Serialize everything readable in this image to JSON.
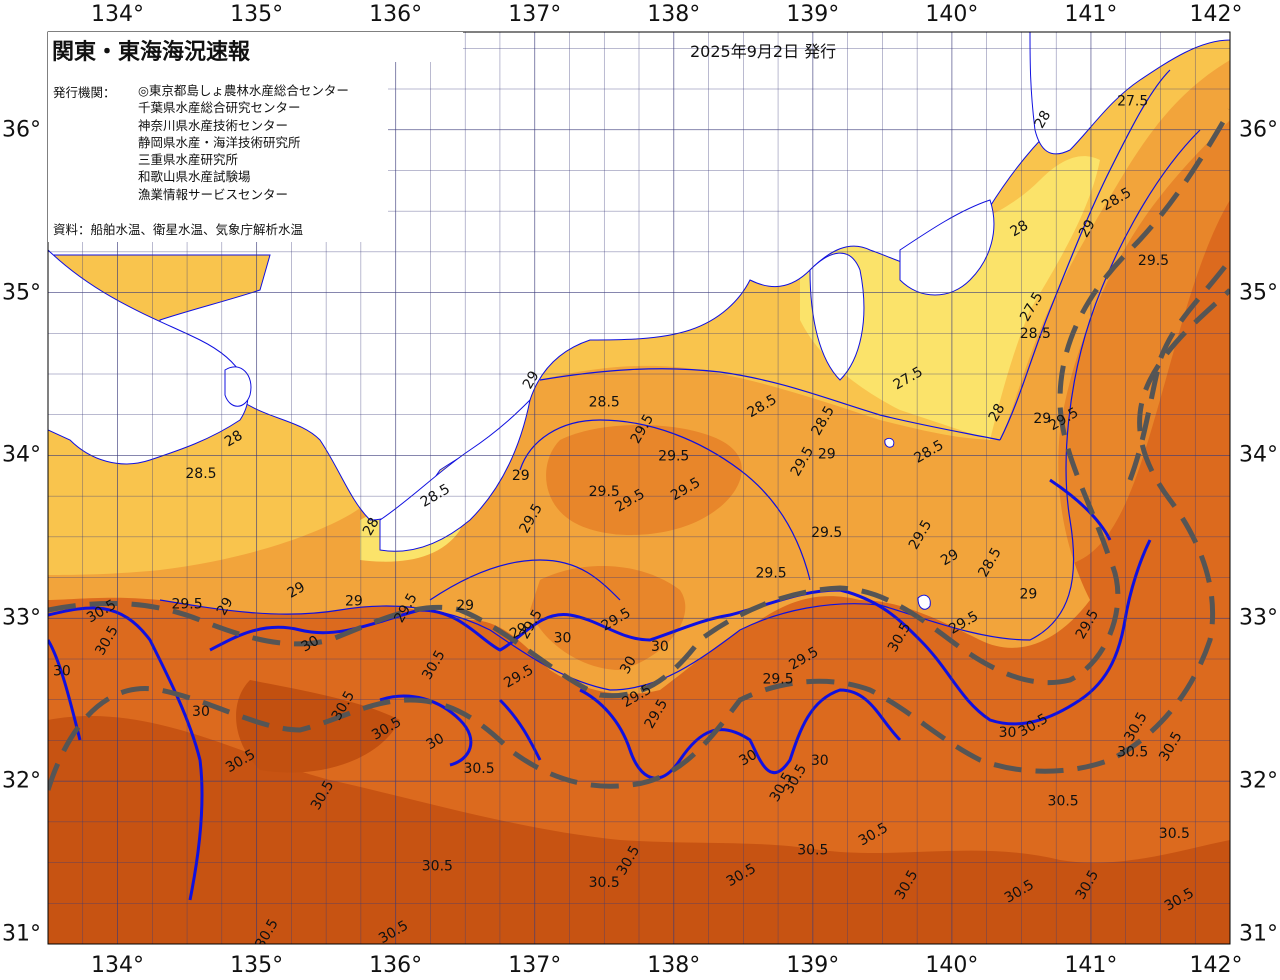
{
  "map": {
    "title": "関東・東海海況速報",
    "issue_date": "2025年9月2日 発行",
    "agencies_label": "発行機関：",
    "agencies": [
      "◎東京都島しょ農林水産総合センター",
      "千葉県水産総合研究センター",
      "神奈川県水産技術センター",
      "静岡県水産・海洋技術研究所",
      "三重県水産研究所",
      "和歌山県水産試験場",
      "漁業情報サービスセンター"
    ],
    "source": "資料：船舶水温、衛星水温、気象庁解析水温",
    "longitude_ticks": [
      "134°",
      "135°",
      "136°",
      "137°",
      "138°",
      "139°",
      "140°",
      "141°",
      "142°"
    ],
    "latitude_ticks": [
      "36°",
      "35°",
      "34°",
      "33°",
      "32°",
      "31°"
    ],
    "longitude_range": [
      133.5,
      142
    ],
    "latitude_range": [
      31,
      36.6
    ],
    "isotherm_labels": [
      {
        "text": "28",
        "lon": 140.68,
        "lat": 36.05
      },
      {
        "text": "27.5",
        "lon": 141.3,
        "lat": 36.15
      },
      {
        "text": "28.5",
        "lon": 141.2,
        "lat": 35.55
      },
      {
        "text": "29",
        "lon": 141.0,
        "lat": 35.38
      },
      {
        "text": "29.5",
        "lon": 141.45,
        "lat": 35.17
      },
      {
        "text": "28",
        "lon": 140.5,
        "lat": 35.37
      },
      {
        "text": "27.5",
        "lon": 140.6,
        "lat": 34.9
      },
      {
        "text": "28.5",
        "lon": 140.6,
        "lat": 34.72
      },
      {
        "text": "27.5",
        "lon": 139.7,
        "lat": 34.45
      },
      {
        "text": "28",
        "lon": 140.35,
        "lat": 34.25
      },
      {
        "text": "29",
        "lon": 140.65,
        "lat": 34.2
      },
      {
        "text": "29.5",
        "lon": 140.82,
        "lat": 34.2
      },
      {
        "text": "28.5",
        "lon": 139.1,
        "lat": 34.2
      },
      {
        "text": "29",
        "lon": 139.1,
        "lat": 33.98
      },
      {
        "text": "28.5",
        "lon": 139.85,
        "lat": 34.0
      },
      {
        "text": "29",
        "lon": 137.0,
        "lat": 34.45
      },
      {
        "text": "28.5",
        "lon": 137.5,
        "lat": 34.3
      },
      {
        "text": "28.5",
        "lon": 138.65,
        "lat": 34.28
      },
      {
        "text": "29.5",
        "lon": 137.8,
        "lat": 34.15
      },
      {
        "text": "29.5",
        "lon": 138.0,
        "lat": 33.97
      },
      {
        "text": "29.5",
        "lon": 138.1,
        "lat": 33.77
      },
      {
        "text": "29.5",
        "lon": 138.95,
        "lat": 33.95
      },
      {
        "text": "29.5",
        "lon": 137.5,
        "lat": 33.75
      },
      {
        "text": "29.5",
        "lon": 137.7,
        "lat": 33.7
      },
      {
        "text": "29.5",
        "lon": 137.0,
        "lat": 33.6
      },
      {
        "text": "29",
        "lon": 136.9,
        "lat": 33.85
      },
      {
        "text": "28.5",
        "lon": 136.3,
        "lat": 33.73
      },
      {
        "text": "28",
        "lon": 135.85,
        "lat": 33.55
      },
      {
        "text": "28.5",
        "lon": 134.6,
        "lat": 33.86
      },
      {
        "text": "28",
        "lon": 134.85,
        "lat": 34.08
      },
      {
        "text": "29.5",
        "lon": 139.8,
        "lat": 33.5
      },
      {
        "text": "29.5",
        "lon": 139.1,
        "lat": 33.5
      },
      {
        "text": "29",
        "lon": 140.0,
        "lat": 33.35
      },
      {
        "text": "28.5",
        "lon": 140.3,
        "lat": 33.33
      },
      {
        "text": "29",
        "lon": 140.55,
        "lat": 33.12
      },
      {
        "text": "29.5",
        "lon": 140.1,
        "lat": 32.95
      },
      {
        "text": "29.5",
        "lon": 141.0,
        "lat": 32.95
      },
      {
        "text": "29.5",
        "lon": 138.7,
        "lat": 33.25
      },
      {
        "text": "29.5",
        "lon": 137.6,
        "lat": 32.97
      },
      {
        "text": "29.5",
        "lon": 137.0,
        "lat": 32.95
      },
      {
        "text": "29",
        "lon": 136.5,
        "lat": 33.05
      },
      {
        "text": "29",
        "lon": 136.9,
        "lat": 32.9
      },
      {
        "text": "29.5",
        "lon": 136.1,
        "lat": 33.05
      },
      {
        "text": "29",
        "lon": 135.7,
        "lat": 33.08
      },
      {
        "text": "29",
        "lon": 135.3,
        "lat": 33.15
      },
      {
        "text": "29",
        "lon": 134.8,
        "lat": 33.06
      },
      {
        "text": "29.5",
        "lon": 134.5,
        "lat": 33.06
      },
      {
        "text": "30.5",
        "lon": 133.9,
        "lat": 33.02
      },
      {
        "text": "30.5",
        "lon": 133.95,
        "lat": 32.85
      },
      {
        "text": "30",
        "lon": 133.6,
        "lat": 32.65
      },
      {
        "text": "30",
        "lon": 135.4,
        "lat": 32.82
      },
      {
        "text": "30.5",
        "lon": 136.3,
        "lat": 32.7
      },
      {
        "text": "30",
        "lon": 137.2,
        "lat": 32.85
      },
      {
        "text": "29.5",
        "lon": 136.9,
        "lat": 32.62
      },
      {
        "text": "30",
        "lon": 137.7,
        "lat": 32.7
      },
      {
        "text": "30",
        "lon": 137.9,
        "lat": 32.8
      },
      {
        "text": "29.5",
        "lon": 137.75,
        "lat": 32.5
      },
      {
        "text": "29.5",
        "lon": 137.9,
        "lat": 32.4
      },
      {
        "text": "29.5",
        "lon": 138.75,
        "lat": 32.6
      },
      {
        "text": "29.5",
        "lon": 138.95,
        "lat": 32.73
      },
      {
        "text": "30.5",
        "lon": 139.65,
        "lat": 32.87
      },
      {
        "text": "30",
        "lon": 140.4,
        "lat": 32.27
      },
      {
        "text": "30.5",
        "lon": 140.6,
        "lat": 32.32
      },
      {
        "text": "30.5",
        "lon": 141.35,
        "lat": 32.32
      },
      {
        "text": "30.5",
        "lon": 141.3,
        "lat": 32.15
      },
      {
        "text": "30.5",
        "lon": 135.95,
        "lat": 32.3
      },
      {
        "text": "30.5",
        "lon": 135.65,
        "lat": 32.45
      },
      {
        "text": "30",
        "lon": 134.6,
        "lat": 32.4
      },
      {
        "text": "30.5",
        "lon": 134.9,
        "lat": 32.1
      },
      {
        "text": "30.5",
        "lon": 135.5,
        "lat": 31.9
      },
      {
        "text": "30.5",
        "lon": 136.3,
        "lat": 31.45
      },
      {
        "text": "30.5",
        "lon": 136.0,
        "lat": 31.05
      },
      {
        "text": "30.5",
        "lon": 135.1,
        "lat": 31.05
      },
      {
        "text": "30.5",
        "lon": 136.6,
        "lat": 32.05
      },
      {
        "text": "30",
        "lon": 136.3,
        "lat": 32.22
      },
      {
        "text": "30.5",
        "lon": 137.7,
        "lat": 31.5
      },
      {
        "text": "30.5",
        "lon": 137.5,
        "lat": 31.35
      },
      {
        "text": "30.5",
        "lon": 138.5,
        "lat": 31.4
      },
      {
        "text": "30.5",
        "lon": 138.8,
        "lat": 31.95
      },
      {
        "text": "30.5",
        "lon": 139.0,
        "lat": 31.55
      },
      {
        "text": "30.5",
        "lon": 139.45,
        "lat": 31.65
      },
      {
        "text": "30.5",
        "lon": 139.7,
        "lat": 31.35
      },
      {
        "text": "30.5",
        "lon": 140.8,
        "lat": 31.85
      },
      {
        "text": "30.5",
        "lon": 140.5,
        "lat": 31.3
      },
      {
        "text": "30.5",
        "lon": 141.0,
        "lat": 31.35
      },
      {
        "text": "30.5",
        "lon": 141.6,
        "lat": 31.65
      },
      {
        "text": "30.5",
        "lon": 141.65,
        "lat": 31.25
      },
      {
        "text": "30.5",
        "lon": 141.6,
        "lat": 32.2
      },
      {
        "text": "30",
        "lon": 139.05,
        "lat": 32.1
      },
      {
        "text": "30",
        "lon": 138.55,
        "lat": 32.12
      },
      {
        "text": "30.5",
        "lon": 138.9,
        "lat": 32.0
      }
    ],
    "colors": {
      "sea_lightest": "#fbe36a",
      "sea_light": "#f9c44d",
      "sea_mid": "#f2a43b",
      "sea_orange": "#e8862a",
      "sea_dark": "#dc6a1e",
      "sea_darker": "#c75312",
      "land": "#ffffff",
      "contour": "#1010e0",
      "kuroshio": "#555555",
      "grid": "#3a3a7a"
    }
  }
}
